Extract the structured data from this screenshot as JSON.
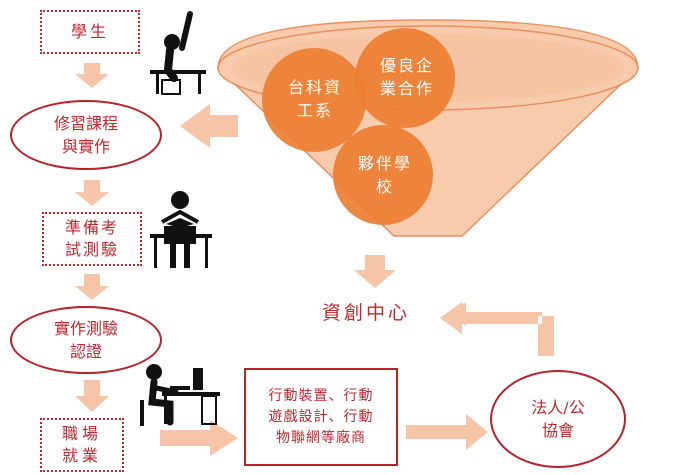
{
  "left_flow": {
    "student": "學生",
    "courses": "修習課程\n與實作",
    "exam_prep": "準備考\n試測驗",
    "certification": "實作測驗\n認證",
    "employment": "職場\n就業"
  },
  "funnel": {
    "circle_a": "台科資\n工系",
    "circle_b": "優良企\n業合作",
    "circle_c": "夥伴學\n校"
  },
  "center": {
    "label": "資創中心"
  },
  "industry": {
    "label": "行動裝置、行動\n遊戲設計、行動\n物聯網等廠商"
  },
  "association": {
    "label": "法人/公\n協會"
  },
  "colors": {
    "red": "#c0272d",
    "circle_orange": "#ed7d31",
    "funnel_peach": "#f8cbad",
    "arrow_peach": "#f6c4a6"
  }
}
